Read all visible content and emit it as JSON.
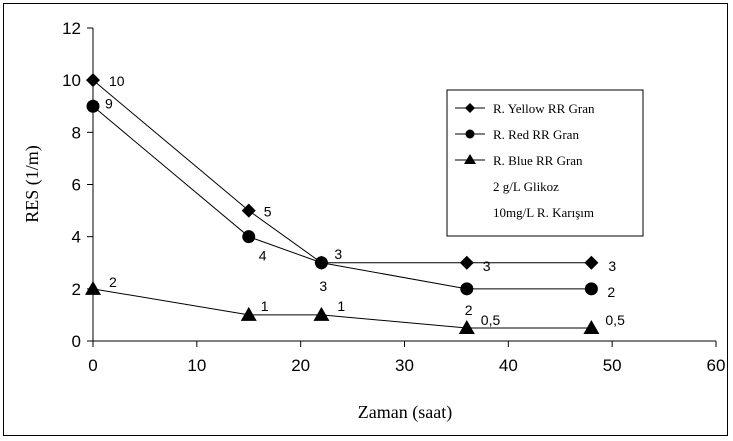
{
  "chart_data": {
    "type": "line",
    "xlabel": "Zaman (saat)",
    "ylabel": "RES (1/m)",
    "xlim": [
      0,
      60
    ],
    "ylim": [
      0,
      12
    ],
    "xticks": [
      "0",
      "10",
      "20",
      "30",
      "40",
      "50",
      "60"
    ],
    "yticks": [
      "0",
      "2",
      "4",
      "6",
      "8",
      "10",
      "12"
    ],
    "grid": false,
    "legend_position": "right",
    "series": [
      {
        "name": "R. Yellow RR Gran",
        "marker": "diamond",
        "x": [
          0,
          15,
          22,
          36,
          48
        ],
        "y": [
          10,
          5,
          3,
          3,
          3
        ],
        "labels": [
          "10",
          "5",
          "3",
          "3",
          "3"
        ]
      },
      {
        "name": "R. Red RR Gran",
        "marker": "circle",
        "x": [
          0,
          15,
          22,
          36,
          48
        ],
        "y": [
          9,
          4,
          3,
          2,
          2
        ],
        "labels": [
          "9",
          "4",
          "3",
          "2",
          "2"
        ]
      },
      {
        "name": "R. Blue RR Gran",
        "marker": "triangle",
        "x": [
          0,
          15,
          22,
          36,
          48
        ],
        "y": [
          2,
          1,
          1,
          0.5,
          0.5
        ],
        "labels": [
          "2",
          "1",
          "1",
          "0,5",
          "0,5"
        ]
      }
    ],
    "legend_notes": [
      "2 g/L Glikoz",
      "10mg/L R. Karışım"
    ],
    "colors": {
      "line": "#000000",
      "marker": "#000000",
      "background": "#ffffff"
    }
  }
}
